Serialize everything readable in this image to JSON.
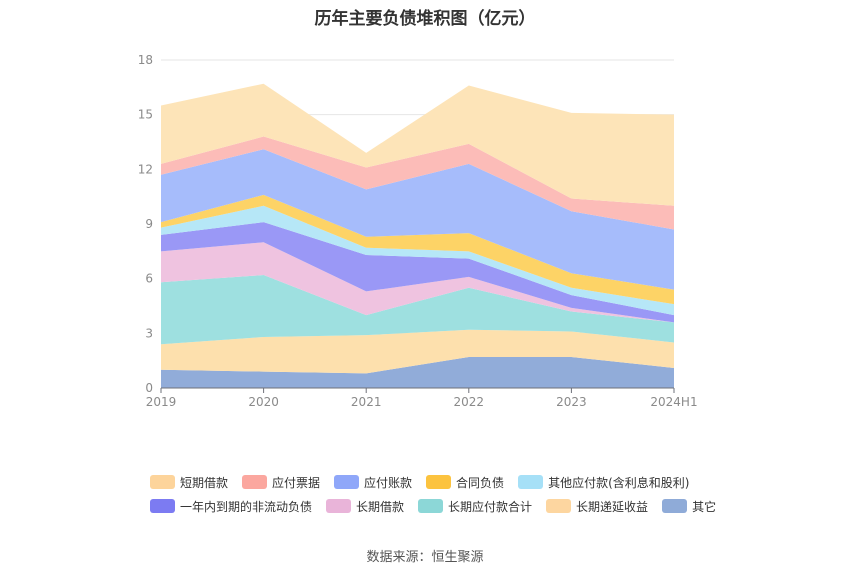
{
  "title": "历年主要负债堆积图（亿元）",
  "source": "数据来源：恒生聚源",
  "chart_data": {
    "type": "area",
    "stacked": true,
    "categories": [
      "2019",
      "2020",
      "2021",
      "2022",
      "2023",
      "2024H1"
    ],
    "ylim": [
      0,
      18
    ],
    "yticks": [
      0,
      3,
      6,
      9,
      12,
      15,
      18
    ],
    "grid": true,
    "legend_position": "bottom",
    "series": [
      {
        "name": "其它",
        "color": "#91acd9",
        "values": [
          1.0,
          0.9,
          0.8,
          1.7,
          1.7,
          1.1
        ]
      },
      {
        "name": "长期递延收益",
        "color": "#fde0ad",
        "values": [
          1.4,
          1.9,
          2.1,
          1.5,
          1.4,
          1.4
        ]
      },
      {
        "name": "长期应付款合计",
        "color": "#9ee0e0",
        "values": [
          3.4,
          3.4,
          1.1,
          2.3,
          1.1,
          1.1
        ]
      },
      {
        "name": "长期借款",
        "color": "#efc3e0",
        "values": [
          1.7,
          1.8,
          1.3,
          0.6,
          0.2,
          0.0
        ]
      },
      {
        "name": "一年内到期的非流动负债",
        "color": "#9a98f6",
        "values": [
          0.9,
          1.1,
          2.0,
          1.0,
          0.7,
          0.4
        ]
      },
      {
        "name": "其他应付款(含利息和股利)",
        "color": "#b6e7f7",
        "values": [
          0.4,
          0.9,
          0.4,
          0.4,
          0.4,
          0.6
        ]
      },
      {
        "name": "合同负债",
        "color": "#fdd366",
        "values": [
          0.3,
          0.6,
          0.6,
          1.0,
          0.8,
          0.8
        ]
      },
      {
        "name": "应付账款",
        "color": "#a6bcfb",
        "values": [
          2.6,
          2.5,
          2.6,
          3.8,
          3.4,
          3.3
        ]
      },
      {
        "name": "应付票据",
        "color": "#fcbcb8",
        "values": [
          0.6,
          0.7,
          1.2,
          1.1,
          0.7,
          1.3
        ]
      },
      {
        "name": "短期借款",
        "color": "#fde4b8",
        "values": [
          3.2,
          2.9,
          0.8,
          3.2,
          4.7,
          5.0
        ]
      }
    ]
  },
  "legend": {
    "row1": [
      {
        "label": "短期借款",
        "color": "#fdd49b"
      },
      {
        "label": "应付票据",
        "color": "#fba79f"
      },
      {
        "label": "应付账款",
        "color": "#8fa7f9"
      },
      {
        "label": "合同负债",
        "color": "#fcc33f"
      },
      {
        "label": "其他应付款(含利息和股利)",
        "color": "#a6e0f7"
      }
    ],
    "row2": [
      {
        "label": "一年内到期的非流动负债",
        "color": "#7c7bf2"
      },
      {
        "label": "长期借款",
        "color": "#e9b4d9"
      },
      {
        "label": "长期应付款合计",
        "color": "#8cd7d7"
      },
      {
        "label": "长期递延收益",
        "color": "#fdd6a0"
      },
      {
        "label": "其它",
        "color": "#8fabd8"
      }
    ]
  }
}
